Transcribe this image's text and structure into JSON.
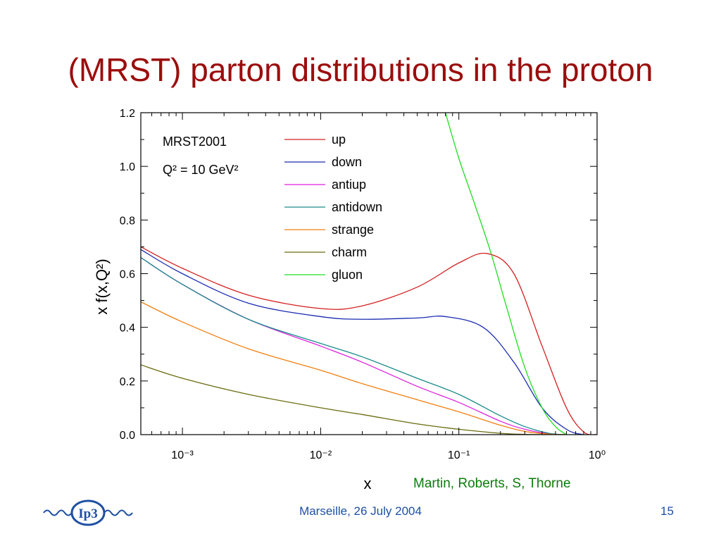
{
  "slide": {
    "title": "(MRST) parton distributions in the proton",
    "credit": "Martin, Roberts, S, Thorne",
    "footer": "Marseille, 26 July 2004",
    "page_number": "15",
    "logo_text": "Ip3"
  },
  "colors": {
    "title": "#9b0d0d",
    "credit": "#0b7d0b",
    "footer": "#1f4fa3"
  },
  "chart_data": {
    "type": "line",
    "title": "",
    "xlabel": "x",
    "ylabel": "x f(x,Q²)",
    "xscale": "log",
    "xlim": [
      0.0005,
      1.0
    ],
    "ylim": [
      0.0,
      1.2
    ],
    "x_ticks": [
      "10⁻³",
      "10⁻²",
      "10⁻¹",
      "10⁰"
    ],
    "y_ticks": [
      "0.0",
      "0.2",
      "0.4",
      "0.6",
      "0.8",
      "1.0",
      "1.2"
    ],
    "annotation_lines": [
      "MRST2001",
      "Q² = 10 GeV²"
    ],
    "legend_position": "top-center",
    "series": [
      {
        "name": "up",
        "color": "#d42020",
        "x": [
          0.0005,
          0.001,
          0.003,
          0.01,
          0.02,
          0.05,
          0.1,
          0.16,
          0.25,
          0.4,
          0.6,
          0.8,
          1.0
        ],
        "y": [
          0.7,
          0.62,
          0.52,
          0.47,
          0.48,
          0.55,
          0.64,
          0.675,
          0.6,
          0.33,
          0.1,
          0.01,
          0.0
        ]
      },
      {
        "name": "down",
        "color": "#1a2bb0",
        "x": [
          0.0005,
          0.001,
          0.003,
          0.01,
          0.02,
          0.05,
          0.08,
          0.15,
          0.25,
          0.4,
          0.6,
          0.8,
          1.0
        ],
        "y": [
          0.69,
          0.6,
          0.49,
          0.44,
          0.43,
          0.435,
          0.44,
          0.4,
          0.27,
          0.1,
          0.02,
          0.0,
          0.0
        ]
      },
      {
        "name": "antiup",
        "color": "#dd22dd",
        "x": [
          0.0005,
          0.001,
          0.003,
          0.01,
          0.02,
          0.05,
          0.1,
          0.2,
          0.3,
          0.45,
          0.6
        ],
        "y": [
          0.66,
          0.56,
          0.43,
          0.33,
          0.27,
          0.18,
          0.12,
          0.05,
          0.02,
          0.003,
          0.0
        ]
      },
      {
        "name": "antidown",
        "color": "#1a8a8a",
        "x": [
          0.0005,
          0.001,
          0.003,
          0.01,
          0.02,
          0.05,
          0.1,
          0.2,
          0.3,
          0.45,
          0.6
        ],
        "y": [
          0.66,
          0.56,
          0.43,
          0.34,
          0.29,
          0.21,
          0.15,
          0.07,
          0.03,
          0.005,
          0.0
        ]
      },
      {
        "name": "strange",
        "color": "#f07f10",
        "x": [
          0.0005,
          0.001,
          0.003,
          0.01,
          0.02,
          0.05,
          0.1,
          0.2,
          0.3,
          0.45,
          0.6
        ],
        "y": [
          0.495,
          0.42,
          0.32,
          0.24,
          0.19,
          0.13,
          0.085,
          0.035,
          0.012,
          0.002,
          0.0
        ]
      },
      {
        "name": "charm",
        "color": "#6b6b10",
        "x": [
          0.0005,
          0.001,
          0.003,
          0.01,
          0.02,
          0.05,
          0.1,
          0.2,
          0.3,
          0.4
        ],
        "y": [
          0.26,
          0.21,
          0.15,
          0.1,
          0.075,
          0.04,
          0.02,
          0.005,
          0.001,
          0.0
        ]
      },
      {
        "name": "gluon",
        "color": "#22dd22",
        "x": [
          0.08,
          0.1,
          0.13,
          0.17,
          0.22,
          0.3,
          0.4,
          0.5,
          0.6
        ],
        "y": [
          1.2,
          1.03,
          0.86,
          0.68,
          0.48,
          0.25,
          0.1,
          0.03,
          0.0
        ]
      }
    ]
  }
}
